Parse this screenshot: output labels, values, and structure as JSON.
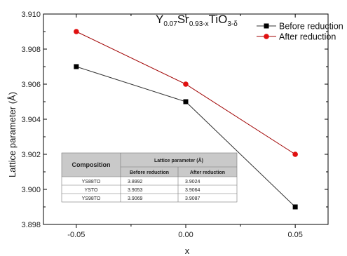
{
  "chart_data": {
    "type": "line",
    "title": {
      "parts": [
        {
          "text": "Y",
          "style": "normal"
        },
        {
          "text": "0.07",
          "style": "sub"
        },
        {
          "text": "Sr",
          "style": "normal"
        },
        {
          "text": "0.93-x",
          "style": "sub"
        },
        {
          "text": "TiO",
          "style": "normal"
        },
        {
          "text": "3-δ",
          "style": "sub"
        }
      ]
    },
    "xlabel": "x",
    "ylabel": "Lattice parameter (Å)",
    "x": [
      -0.05,
      0.0,
      0.05
    ],
    "x_tick_labels": [
      "-0.05",
      "0.00",
      "0.05"
    ],
    "xlim": [
      -0.065,
      0.065
    ],
    "ylim": [
      3.898,
      3.91
    ],
    "y_ticks": [
      3.898,
      3.9,
      3.902,
      3.904,
      3.906,
      3.908,
      3.91
    ],
    "y_tick_labels": [
      "3.898",
      "3.900",
      "3.902",
      "3.904",
      "3.906",
      "3.908",
      "3.910"
    ],
    "legend_position": "top-right",
    "series": [
      {
        "name": "Before reduction",
        "values": [
          3.907,
          3.905,
          3.899
        ],
        "color": "#000000",
        "line_color": "#333333",
        "marker": "square"
      },
      {
        "name": "After reduction",
        "values": [
          3.909,
          3.906,
          3.902
        ],
        "color": "#e01010",
        "line_color": "#a00000",
        "marker": "circle"
      }
    ],
    "inset_table": {
      "header_composition": "Composition",
      "header_lattice": "Lattice parameter (Å)",
      "subheaders": [
        "Before reduction",
        "After reduction"
      ],
      "rows": [
        [
          "YS88TO",
          "3.8992",
          "3.9024"
        ],
        [
          "YSTO",
          "3.9053",
          "3.9064"
        ],
        [
          "YS98TO",
          "3.9069",
          "3.9087"
        ]
      ]
    }
  }
}
